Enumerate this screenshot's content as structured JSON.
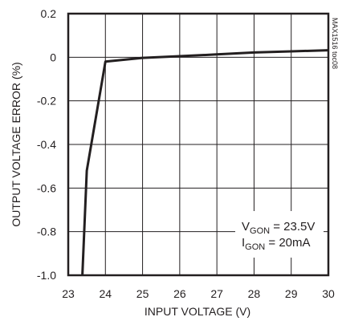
{
  "chart_data": {
    "type": "line",
    "xlabel": "INPUT VOLTAGE (V)",
    "ylabel": "OUTPUT VOLTAGE ERROR (%)",
    "xlim": [
      23,
      30
    ],
    "ylim": [
      -1.0,
      0.2
    ],
    "xticks": [
      "23",
      "24",
      "25",
      "26",
      "27",
      "28",
      "29",
      "30"
    ],
    "yticks": [
      "0.2",
      "0",
      "-0.2",
      "-0.4",
      "-0.6",
      "-0.8",
      "-1.0"
    ],
    "grid": true,
    "series": [
      {
        "x": [
          23.38,
          23.5,
          24.0,
          25.0,
          26.0,
          27.0,
          28.0,
          29.0,
          30.0
        ],
        "y": [
          -1.0,
          -0.52,
          -0.02,
          -0.003,
          0.005,
          0.013,
          0.022,
          0.027,
          0.032
        ]
      }
    ],
    "annotations": [
      {
        "main": "V",
        "sub": "GON",
        "rest": " = 23.5V"
      },
      {
        "main": "I",
        "sub": "GON",
        "rest": " = 20mA"
      }
    ],
    "part_number": "MAX1516 toc08"
  }
}
